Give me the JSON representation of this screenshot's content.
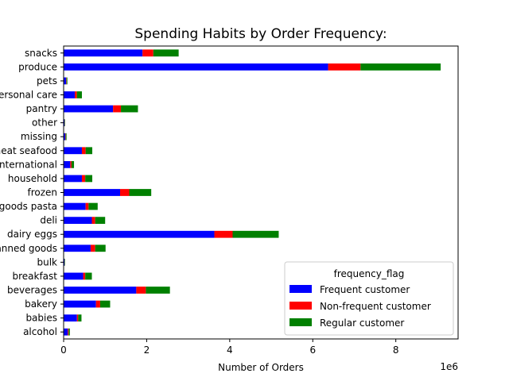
{
  "chart_data": {
    "type": "bar",
    "orientation": "horizontal",
    "stacked": true,
    "title": "Spending Habits by Order Frequency:",
    "xlabel": "Number of Orders",
    "ylabel": "",
    "x_multiplier_label": "1e6",
    "xlim": [
      0,
      9.5
    ],
    "x_ticks": [
      0,
      2,
      4,
      6,
      8
    ],
    "grid": false,
    "legend_title": "frequency_flag",
    "legend_position": "lower-right",
    "categories": [
      "alcohol",
      "babies",
      "bakery",
      "beverages",
      "breakfast",
      "bulk",
      "canned goods",
      "dairy eggs",
      "deli",
      "dry goods pasta",
      "frozen",
      "household",
      "international",
      "meat seafood",
      "missing",
      "other",
      "pantry",
      "personal care",
      "pets",
      "produce",
      "snacks"
    ],
    "series": [
      {
        "name": "Frequent customer",
        "color": "#0000ff",
        "values": [
          0.1,
          0.32,
          0.78,
          1.75,
          0.47,
          0.02,
          0.65,
          3.63,
          0.68,
          0.53,
          1.36,
          0.44,
          0.16,
          0.44,
          0.04,
          0.02,
          1.19,
          0.27,
          0.06,
          6.37,
          1.9
        ]
      },
      {
        "name": "Non-frequent customer",
        "color": "#ff0000",
        "values": [
          0.02,
          0.03,
          0.1,
          0.23,
          0.05,
          0.004,
          0.11,
          0.44,
          0.08,
          0.07,
          0.22,
          0.08,
          0.03,
          0.09,
          0.01,
          0.005,
          0.19,
          0.05,
          0.01,
          0.78,
          0.26
        ]
      },
      {
        "name": "Regular customer",
        "color": "#008000",
        "values": [
          0.03,
          0.08,
          0.24,
          0.58,
          0.16,
          0.01,
          0.25,
          1.11,
          0.24,
          0.22,
          0.53,
          0.17,
          0.06,
          0.16,
          0.02,
          0.01,
          0.41,
          0.12,
          0.02,
          1.93,
          0.61
        ]
      }
    ]
  }
}
